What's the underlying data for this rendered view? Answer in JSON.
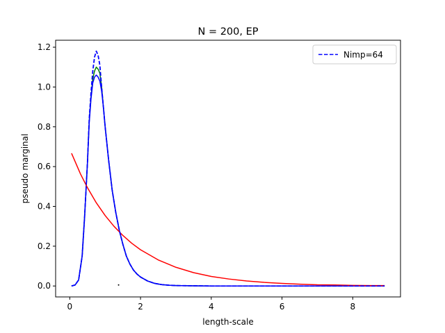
{
  "chart_data": {
    "type": "line",
    "title": "N = 200, EP",
    "xlabel": "length-scale",
    "ylabel": "pseudo marginal",
    "xlim": [
      -0.4,
      9.35
    ],
    "ylim": [
      -0.055,
      1.235
    ],
    "xticks": [
      0,
      2,
      4,
      6,
      8
    ],
    "yticks": [
      0.0,
      0.2,
      0.4,
      0.6,
      0.8,
      1.0,
      1.2
    ],
    "xtick_labels": [
      "0",
      "2",
      "4",
      "6",
      "8"
    ],
    "ytick_labels": [
      "0.0",
      "0.2",
      "0.4",
      "0.6",
      "0.8",
      "1.0",
      "1.2"
    ],
    "grid": false,
    "legend": {
      "placement": "top-right",
      "entries": [
        "Nimp=64"
      ]
    },
    "series": [
      {
        "name": "Nimp=64",
        "color": "#0000ff",
        "style": "dashed",
        "x": [
          0.05,
          0.15,
          0.25,
          0.35,
          0.42,
          0.5,
          0.55,
          0.6,
          0.65,
          0.7,
          0.75,
          0.8,
          0.85,
          0.9,
          0.95,
          1.0,
          1.1,
          1.2,
          1.3,
          1.4,
          1.5,
          1.6,
          1.7,
          1.8,
          1.9,
          2.0,
          2.2,
          2.4,
          2.6,
          2.8,
          3.0,
          3.5,
          4.0,
          5.0,
          6.0,
          7.0,
          8.0,
          8.9
        ],
        "y": [
          0.0,
          0.005,
          0.03,
          0.15,
          0.35,
          0.62,
          0.84,
          0.97,
          1.08,
          1.15,
          1.18,
          1.16,
          1.11,
          1.0,
          0.9,
          0.8,
          0.63,
          0.48,
          0.37,
          0.28,
          0.21,
          0.15,
          0.11,
          0.08,
          0.06,
          0.045,
          0.025,
          0.013,
          0.007,
          0.004,
          0.002,
          0.001,
          0.0,
          0.0,
          0.0,
          0.0,
          0.0,
          0.0
        ]
      },
      {
        "color": "#008000",
        "style": "solid",
        "x": [
          0.05,
          0.15,
          0.25,
          0.35,
          0.42,
          0.5,
          0.55,
          0.6,
          0.65,
          0.7,
          0.75,
          0.8,
          0.85,
          0.9,
          0.95,
          1.0,
          1.1,
          1.2,
          1.3,
          1.4,
          1.5,
          1.6,
          1.7,
          1.8,
          1.9,
          2.0,
          2.2,
          2.4,
          2.6,
          2.8,
          3.0,
          3.5,
          4.0,
          5.0,
          6.0,
          7.0,
          8.0,
          8.9
        ],
        "y": [
          0.0,
          0.005,
          0.03,
          0.15,
          0.35,
          0.62,
          0.83,
          0.95,
          1.04,
          1.08,
          1.1,
          1.09,
          1.07,
          1.0,
          0.9,
          0.8,
          0.63,
          0.48,
          0.37,
          0.28,
          0.21,
          0.15,
          0.11,
          0.08,
          0.06,
          0.045,
          0.025,
          0.013,
          0.007,
          0.004,
          0.002,
          0.001,
          0.0,
          0.0,
          0.0,
          0.0,
          0.0,
          0.0
        ]
      },
      {
        "color": "#0000ff",
        "style": "solid",
        "x": [
          0.05,
          0.15,
          0.25,
          0.35,
          0.42,
          0.5,
          0.55,
          0.6,
          0.65,
          0.7,
          0.75,
          0.8,
          0.85,
          0.9,
          0.95,
          1.0,
          1.1,
          1.2,
          1.3,
          1.4,
          1.5,
          1.6,
          1.7,
          1.8,
          1.9,
          2.0,
          2.2,
          2.4,
          2.6,
          2.8,
          3.0,
          3.5,
          4.0,
          5.0,
          6.0,
          7.0,
          8.0,
          8.9
        ],
        "y": [
          0.0,
          0.005,
          0.03,
          0.15,
          0.35,
          0.62,
          0.82,
          0.94,
          1.02,
          1.05,
          1.06,
          1.05,
          1.03,
          0.98,
          0.9,
          0.8,
          0.63,
          0.48,
          0.37,
          0.28,
          0.21,
          0.15,
          0.11,
          0.08,
          0.06,
          0.045,
          0.025,
          0.013,
          0.007,
          0.004,
          0.002,
          0.001,
          0.0,
          0.0,
          0.0,
          0.0,
          0.0,
          0.0
        ]
      },
      {
        "color": "#ff0000",
        "style": "solid",
        "x": [
          0.05,
          0.3,
          0.5,
          0.75,
          1.0,
          1.25,
          1.5,
          1.75,
          2.0,
          2.5,
          3.0,
          3.5,
          4.0,
          4.5,
          5.0,
          5.5,
          6.0,
          6.5,
          7.0,
          7.5,
          8.0,
          8.5,
          8.9
        ],
        "y": [
          0.667,
          0.564,
          0.494,
          0.418,
          0.354,
          0.3,
          0.254,
          0.215,
          0.182,
          0.131,
          0.094,
          0.067,
          0.048,
          0.035,
          0.025,
          0.018,
          0.013,
          0.009,
          0.006,
          0.005,
          0.003,
          0.002,
          0.002
        ]
      }
    ],
    "marker": {
      "x": 1.38,
      "y": 0.005,
      "color": "#000000"
    }
  }
}
